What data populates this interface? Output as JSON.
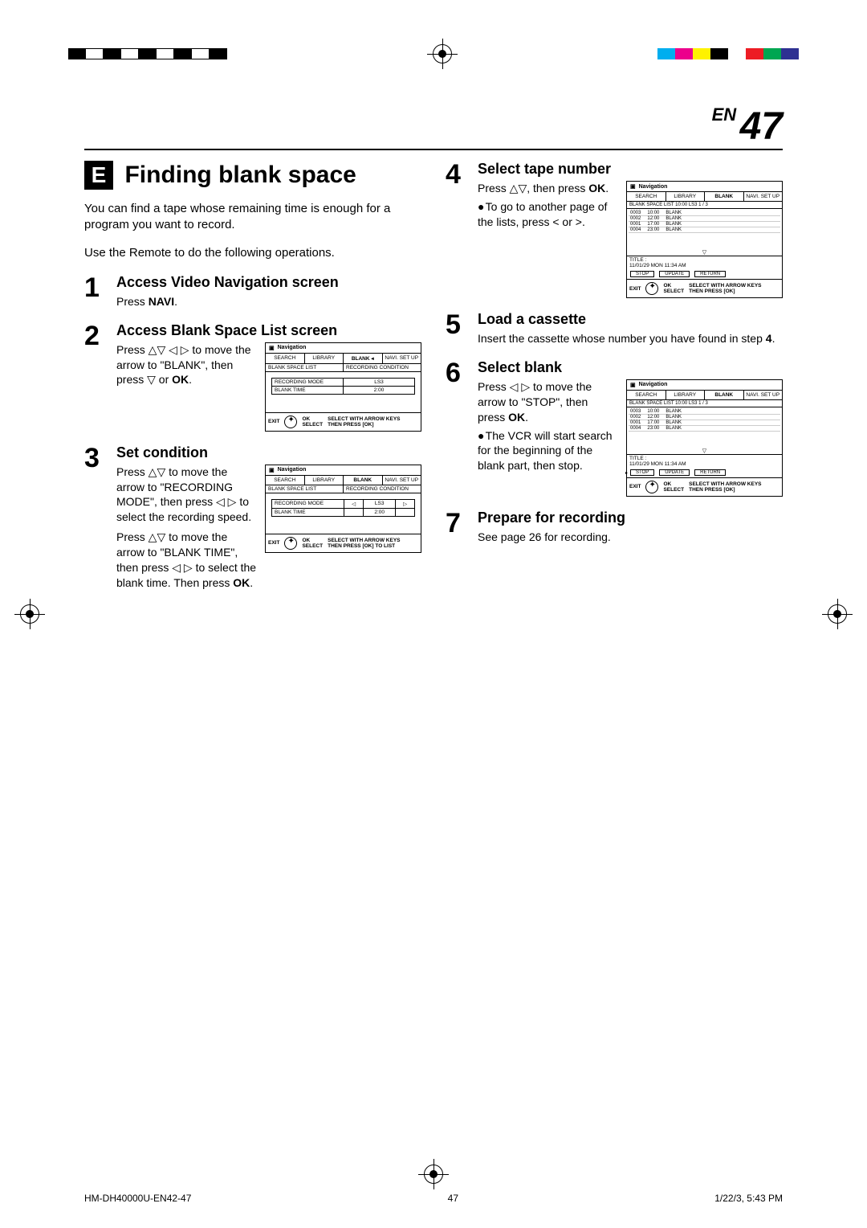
{
  "print_bars_left": [
    "#000000",
    "#ffffff",
    "#000000",
    "#ffffff",
    "#000000",
    "#ffffff",
    "#000000",
    "#ffffff",
    "#000000"
  ],
  "print_bars_right": [
    "#00aeef",
    "#ec008c",
    "#fff200",
    "#000000",
    "#ffffff",
    "#ed1c24",
    "#00a651",
    "#2e3192"
  ],
  "page": {
    "prefix": "EN",
    "number": "47"
  },
  "section": {
    "letter": "E",
    "title": "Finding blank space"
  },
  "intro1": "You can find a tape whose remaining time is enough for a program you want to record.",
  "intro2": "Use the Remote to do the following operations.",
  "steps": {
    "s1": {
      "num": "1",
      "title": "Access Video Navigation screen",
      "text": "Press ",
      "bold": "NAVI",
      "suffix": "."
    },
    "s2": {
      "num": "2",
      "title": "Access Blank Space List screen",
      "text": "Press △▽ ◁ ▷ to move the arrow to \"BLANK\", then press ▽ or ",
      "bold": "OK",
      "suffix": "."
    },
    "s3": {
      "num": "3",
      "title": "Set condition",
      "t1": "Press △▽ to move the arrow to \"RECORDING MODE\", then press ◁ ▷ to select the recording speed.",
      "t2a": "Press △▽ to move the arrow to \"BLANK TIME\", then press ◁ ▷ to select the blank time. Then press ",
      "t2b": "OK",
      "t2c": "."
    },
    "s4": {
      "num": "4",
      "title": "Select tape number",
      "t1a": "Press △▽, then press ",
      "t1b": "OK",
      "t1c": ".",
      "bullet": "To go to another page of the lists, press < or >."
    },
    "s5": {
      "num": "5",
      "title": "Load a cassette",
      "text": "Insert the cassette whose number you have found in step ",
      "bold": "4",
      "suffix": "."
    },
    "s6": {
      "num": "6",
      "title": "Select blank",
      "t1a": "Press ◁ ▷ to move the arrow to \"STOP\", then press ",
      "t1b": "OK",
      "t1c": ".",
      "bullet": "The VCR will start search for the beginning of the blank part, then stop."
    },
    "s7": {
      "num": "7",
      "title": "Prepare for recording",
      "text": "See page 26  for recording."
    }
  },
  "nav": {
    "title": "Navigation",
    "tabs": [
      "SEARCH",
      "LIBRARY",
      "BLANK",
      "NAVI. SET UP"
    ],
    "body2_h1": "BLANK SPACE LIST",
    "body2_h2": "RECORDING CONDITION",
    "table": {
      "r1": [
        "RECORDING MODE",
        "LS3"
      ],
      "r2": [
        "BLANK TIME",
        "2:00"
      ],
      "r1b": [
        "RECORDING MODE",
        "◁",
        "LS3",
        "▷"
      ],
      "r2b": [
        "BLANK TIME",
        "",
        "2:00",
        ""
      ]
    },
    "list_head": "BLANK SPACE LIST        10:00 LS3                                  1 / 3",
    "rows": [
      [
        "0003",
        "10:00",
        "BLANK"
      ],
      [
        "0002",
        "12:00",
        "BLANK"
      ],
      [
        "0001",
        "17:00",
        "BLANK"
      ],
      [
        "0004",
        "23:00",
        "BLANK"
      ]
    ],
    "title_line": "TITLE :",
    "date_line": "11/01/29   MON   11:34 AM",
    "btns": [
      "STOP",
      "UPDATE",
      "RETURN"
    ],
    "exit": "EXIT",
    "ok": "OK",
    "select": "SELECT",
    "f1": "SELECT WITH ARROW KEYS",
    "f2": "THEN PRESS [OK]",
    "f2b": "THEN PRESS [OK] TO LIST"
  },
  "footer": {
    "file": "HM-DH40000U-EN42-47",
    "page": "47",
    "datetime": "1/22/3, 5:43 PM"
  }
}
